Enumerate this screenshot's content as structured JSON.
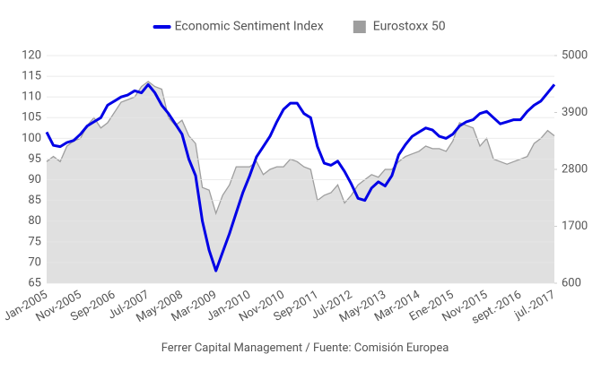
{
  "chart_data": {
    "type": "line",
    "source": "Ferrer Capital Management / Fuente: Comisión Europea",
    "categories": [
      "Jan-2005",
      null,
      null,
      null,
      null,
      "Nov-2005",
      null,
      null,
      null,
      null,
      "Sep-2006",
      null,
      null,
      null,
      null,
      "Jul-2007",
      null,
      null,
      null,
      null,
      "May-2008",
      null,
      null,
      null,
      null,
      "Mar-2009",
      null,
      null,
      null,
      null,
      "Jan-2010",
      null,
      null,
      null,
      null,
      "Nov-2010",
      null,
      null,
      null,
      null,
      "Sep-2011",
      null,
      null,
      null,
      null,
      "Jul-2012",
      null,
      null,
      null,
      null,
      "May-2013",
      null,
      null,
      null,
      null,
      "Mar-2014",
      null,
      null,
      null,
      null,
      "Ene-2015",
      null,
      null,
      null,
      null,
      "Nov-2015",
      null,
      null,
      null,
      null,
      "sept.-2016",
      null,
      null,
      null,
      null,
      "jul.-2017"
    ],
    "series": [
      {
        "name": "Economic Sentiment Index",
        "color": "#0000e6",
        "axis": "y",
        "values": [
          101.5,
          98.3,
          98,
          99,
          99.5,
          101,
          103,
          104,
          105,
          108,
          109,
          110,
          110.5,
          111.5,
          111,
          113,
          111,
          108,
          106,
          103.5,
          101,
          95,
          91,
          80,
          73,
          68,
          72.5,
          77,
          82,
          87,
          91,
          95.5,
          98,
          100.5,
          104,
          107,
          108.5,
          108.5,
          106,
          105,
          98,
          94,
          93.5,
          94.5,
          92,
          89,
          85.5,
          85,
          88,
          89.5,
          88.5,
          91,
          96,
          98.5,
          100.5,
          101.5,
          102.5,
          102,
          100.5,
          100,
          101,
          103,
          104,
          104.5,
          106,
          106.5,
          105,
          103.5,
          104,
          104.5,
          104.5,
          106.5,
          108,
          109,
          111,
          113
        ]
      },
      {
        "name": "Eurostoxx 50",
        "color": "#9e9e9e",
        "fill": "#e0e0e0",
        "axis": "y2",
        "style": "area",
        "values": [
          2950,
          3050,
          2950,
          3250,
          3350,
          3400,
          3650,
          3800,
          3600,
          3700,
          3900,
          4100,
          4150,
          4200,
          4400,
          4500,
          4400,
          4350,
          3800,
          3650,
          3750,
          3450,
          3300,
          2450,
          2400,
          1950,
          2300,
          2500,
          2850,
          2850,
          2850,
          2950,
          2700,
          2800,
          2850,
          2850,
          3000,
          2950,
          2850,
          2800,
          2200,
          2300,
          2350,
          2500,
          2150,
          2300,
          2500,
          2600,
          2700,
          2650,
          2800,
          2800,
          2950,
          3050,
          3100,
          3150,
          3250,
          3200,
          3200,
          3150,
          3350,
          3700,
          3650,
          3600,
          3250,
          3400,
          3000,
          2950,
          2900,
          2950,
          3000,
          3050,
          3300,
          3400,
          3550,
          3450
        ]
      }
    ],
    "ylim": [
      65,
      120
    ],
    "yticks": [
      65,
      70,
      75,
      80,
      85,
      90,
      95,
      100,
      105,
      110,
      115,
      120
    ],
    "y2lim": [
      600,
      5000
    ],
    "y2ticks": [
      600,
      1700,
      2800,
      3900,
      5000
    ],
    "grid": true,
    "legend": "top"
  }
}
